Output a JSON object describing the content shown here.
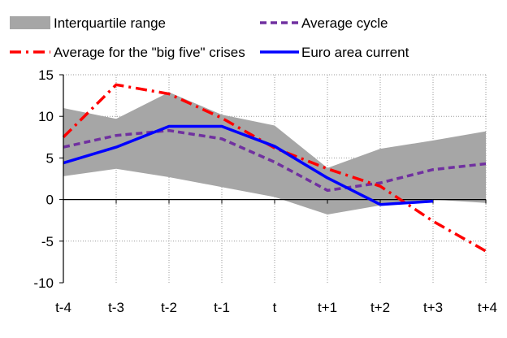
{
  "chart_data": {
    "type": "line",
    "categories": [
      "t-4",
      "t-3",
      "t-2",
      "t-1",
      "t",
      "t+1",
      "t+2",
      "t+3",
      "t+4"
    ],
    "ylim": [
      -10,
      15
    ],
    "yticks": [
      15,
      10,
      5,
      0,
      -5,
      -10
    ],
    "grid": "dotted",
    "legend_placement": "top",
    "band": {
      "name": "Interquartile range",
      "color": "#a6a6a6",
      "lower": [
        2.8,
        3.7,
        2.7,
        1.5,
        0.3,
        -1.8,
        -0.7,
        0.0,
        -0.4
      ],
      "upper": [
        11.0,
        9.7,
        12.9,
        10.2,
        8.9,
        3.8,
        6.1,
        7.1,
        8.2
      ]
    },
    "series": [
      {
        "name": "Average cycle",
        "color": "#7030a0",
        "style": "dashed",
        "values": [
          6.3,
          7.7,
          8.3,
          7.3,
          4.5,
          1.1,
          2.0,
          3.6,
          4.3
        ]
      },
      {
        "name": "Average for the \"big five\" crises",
        "color": "#ff0000",
        "style": "dash-dot",
        "values": [
          7.5,
          13.8,
          12.7,
          9.8,
          6.2,
          3.7,
          1.6,
          -2.6,
          -6.2
        ]
      },
      {
        "name": "Euro area current",
        "color": "#0000ff",
        "style": "solid",
        "values": [
          4.4,
          6.3,
          8.8,
          8.8,
          6.4,
          2.6,
          -0.6,
          -0.2,
          null
        ]
      }
    ]
  }
}
